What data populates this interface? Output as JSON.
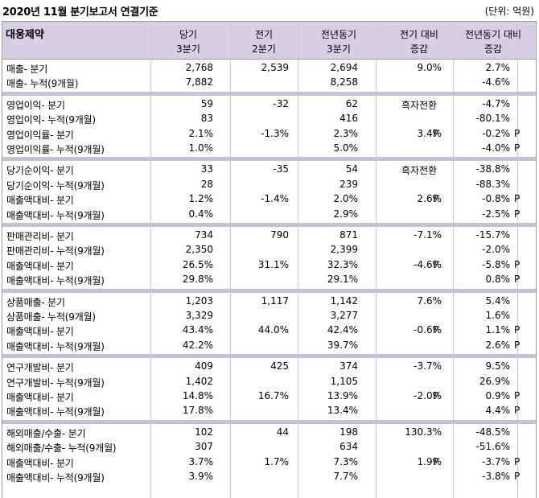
{
  "title": "2020년 11월 분기보고서 연결기준",
  "unit": "(단위: 억원)",
  "header": {
    "company": "대웅제약",
    "cols": [
      {
        "l1": "당기",
        "l2": "3분기"
      },
      {
        "l1": "전기",
        "l2": "2분기"
      },
      {
        "l1": "전년동기",
        "l2": "3분기"
      },
      {
        "l1": "전기 대비",
        "l2": "증감"
      },
      {
        "l1": "전년동기 대비",
        "l2": "증감"
      }
    ]
  },
  "groups": [
    {
      "rows": [
        {
          "label": "매출- 분기",
          "v1": "2,768",
          "v2": "2,539",
          "v3": "2,694",
          "v4": "9.0%",
          "p4": "",
          "t4": "",
          "v5": "2.7%",
          "p5": ""
        },
        {
          "label": "매출- 누적(9개월)",
          "v1": "7,882",
          "v2": "",
          "v3": "8,258",
          "v4": "",
          "p4": "",
          "t4": "",
          "v5": "-4.6%",
          "p5": ""
        }
      ]
    },
    {
      "rows": [
        {
          "label": "영업이익- 분기",
          "v1": "59",
          "v2": "-32",
          "v3": "62",
          "v4": "",
          "p4": "",
          "t4": "흑자전환",
          "v5": "-4.7%",
          "p5": ""
        },
        {
          "label": "영업이익- 누적(9개월)",
          "v1": "83",
          "v2": "",
          "v3": "416",
          "v4": "",
          "p4": "",
          "t4": "",
          "v5": "-80.1%",
          "p5": ""
        },
        {
          "label": "영업이익률- 분기",
          "v1": "2.1%",
          "v2": "-1.3%",
          "v3": "2.3%",
          "v4": "3.4%",
          "p4": "P",
          "t4": "",
          "v5": "-0.2%",
          "p5": "P"
        },
        {
          "label": "영업이익률- 누적(9개월)",
          "v1": "1.0%",
          "v2": "",
          "v3": "5.0%",
          "v4": "",
          "p4": "",
          "t4": "",
          "v5": "-4.0%",
          "p5": "P"
        }
      ]
    },
    {
      "rows": [
        {
          "label": "당기순이익- 분기",
          "v1": "33",
          "v2": "-35",
          "v3": "54",
          "v4": "",
          "p4": "",
          "t4": "흑자전환",
          "v5": "-38.8%",
          "p5": ""
        },
        {
          "label": "당기순이익- 누적(9개월)",
          "v1": "28",
          "v2": "",
          "v3": "239",
          "v4": "",
          "p4": "",
          "t4": "",
          "v5": "-88.3%",
          "p5": ""
        },
        {
          "label": "매출액대비- 분기",
          "v1": "1.2%",
          "v2": "-1.4%",
          "v3": "2.0%",
          "v4": "2.6%",
          "p4": "P",
          "t4": "",
          "v5": "-0.8%",
          "p5": "P"
        },
        {
          "label": "매출액대비- 누적(9개월)",
          "v1": "0.4%",
          "v2": "",
          "v3": "2.9%",
          "v4": "",
          "p4": "",
          "t4": "",
          "v5": "-2.5%",
          "p5": "P"
        }
      ]
    },
    {
      "rows": [
        {
          "label": "판매관리비- 분기",
          "v1": "734",
          "v2": "790",
          "v3": "871",
          "v4": "-7.1%",
          "p4": "",
          "t4": "",
          "v5": "-15.7%",
          "p5": ""
        },
        {
          "label": "판매관리비- 누적(9개월)",
          "v1": "2,350",
          "v2": "",
          "v3": "2,399",
          "v4": "",
          "p4": "",
          "t4": "",
          "v5": "-2.0%",
          "p5": ""
        },
        {
          "label": "매출액대비- 분기",
          "v1": "26.5%",
          "v2": "31.1%",
          "v3": "32.3%",
          "v4": "-4.6%",
          "p4": "P",
          "t4": "",
          "v5": "-5.8%",
          "p5": "P"
        },
        {
          "label": "매출액대비- 누적(9개월)",
          "v1": "29.8%",
          "v2": "",
          "v3": "29.1%",
          "v4": "",
          "p4": "",
          "t4": "",
          "v5": "0.8%",
          "p5": "P"
        }
      ]
    },
    {
      "rows": [
        {
          "label": "상품매출- 분기",
          "v1": "1,203",
          "v2": "1,117",
          "v3": "1,142",
          "v4": "7.6%",
          "p4": "",
          "t4": "",
          "v5": "5.4%",
          "p5": ""
        },
        {
          "label": "상품매출- 누적(9개월)",
          "v1": "3,329",
          "v2": "",
          "v3": "3,277",
          "v4": "",
          "p4": "",
          "t4": "",
          "v5": "1.6%",
          "p5": ""
        },
        {
          "label": "매출액대비- 분기",
          "v1": "43.4%",
          "v2": "44.0%",
          "v3": "42.4%",
          "v4": "-0.6%",
          "p4": "P",
          "t4": "",
          "v5": "1.1%",
          "p5": "P"
        },
        {
          "label": "매출액대비- 누적(9개월)",
          "v1": "42.2%",
          "v2": "",
          "v3": "39.7%",
          "v4": "",
          "p4": "",
          "t4": "",
          "v5": "2.6%",
          "p5": "P"
        }
      ]
    },
    {
      "rows": [
        {
          "label": "연구개발비- 분기",
          "v1": "409",
          "v2": "425",
          "v3": "374",
          "v4": "-3.7%",
          "p4": "",
          "t4": "",
          "v5": "9.5%",
          "p5": ""
        },
        {
          "label": "연구개발비- 누적(9개월)",
          "v1": "1,402",
          "v2": "",
          "v3": "1,105",
          "v4": "",
          "p4": "",
          "t4": "",
          "v5": "26.9%",
          "p5": ""
        },
        {
          "label": "매출액대비- 분기",
          "v1": "14.8%",
          "v2": "16.7%",
          "v3": "13.9%",
          "v4": "-2.0%",
          "p4": "P",
          "t4": "",
          "v5": "0.9%",
          "p5": "P"
        },
        {
          "label": "매출액대비- 누적(9개월)",
          "v1": "17.8%",
          "v2": "",
          "v3": "13.4%",
          "v4": "",
          "p4": "",
          "t4": "",
          "v5": "4.4%",
          "p5": "P"
        }
      ]
    },
    {
      "rows": [
        {
          "label": "해외매출/수출- 분기",
          "v1": "102",
          "v2": "44",
          "v3": "198",
          "v4": "130.3%",
          "p4": "",
          "t4": "",
          "v5": "-48.5%",
          "p5": ""
        },
        {
          "label": "해외매출/수출- 누적(9개월)",
          "v1": "307",
          "v2": "",
          "v3": "634",
          "v4": "",
          "p4": "",
          "t4": "",
          "v5": "-51.6%",
          "p5": ""
        },
        {
          "label": "매출액대비- 분기",
          "v1": "3.7%",
          "v2": "1.7%",
          "v3": "7.3%",
          "v4": "1.9%",
          "p4": "P",
          "t4": "",
          "v5": "-3.7%",
          "p5": "P"
        },
        {
          "label": "매출액대비- 누적(9개월)",
          "v1": "3.9%",
          "v2": "",
          "v3": "7.7%",
          "v4": "",
          "p4": "",
          "t4": "",
          "v5": "-3.8%",
          "p5": "P"
        }
      ]
    }
  ]
}
